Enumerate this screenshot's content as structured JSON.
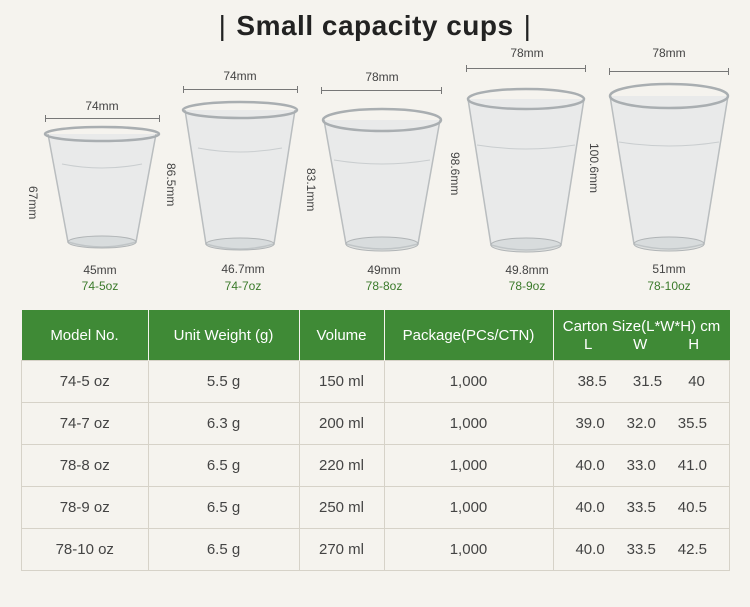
{
  "title": "Small capacity cups",
  "title_bar_left": "|",
  "title_bar_right": "|",
  "colors": {
    "header_green": "#3f8a36",
    "model_green": "#3a7a2a",
    "background": "#f5f3ee"
  },
  "cups": [
    {
      "top_dim": "74mm",
      "height_dim": "67mm",
      "bottom_dim": "45mm",
      "model": "74-5oz"
    },
    {
      "top_dim": "74mm",
      "height_dim": "86.5mm",
      "bottom_dim": "46.7mm",
      "model": "74-7oz"
    },
    {
      "top_dim": "78mm",
      "height_dim": "83.1mm",
      "bottom_dim": "49mm",
      "model": "78-8oz"
    },
    {
      "top_dim": "78mm",
      "height_dim": "98.6mm",
      "bottom_dim": "49.8mm",
      "model": "78-9oz"
    },
    {
      "top_dim": "78mm",
      "height_dim": "100.6mm",
      "bottom_dim": "51mm",
      "model": "78-10oz"
    }
  ],
  "table": {
    "headers": {
      "model": "Model No.",
      "weight": "Unit Weight (g)",
      "volume": "Volume",
      "package": "Package(PCs/CTN)",
      "carton": "Carton Size(L*W*H) cm",
      "l": "L",
      "w": "W",
      "h": "H"
    },
    "rows": [
      {
        "model": "74-5 oz",
        "weight": "5.5 g",
        "volume": "150 ml",
        "package": "1,000",
        "l": "38.5",
        "w": "31.5",
        "h": "40"
      },
      {
        "model": "74-7 oz",
        "weight": "6.3 g",
        "volume": "200 ml",
        "package": "1,000",
        "l": "39.0",
        "w": "32.0",
        "h": "35.5"
      },
      {
        "model": "78-8 oz",
        "weight": "6.5 g",
        "volume": "220 ml",
        "package": "1,000",
        "l": "40.0",
        "w": "33.0",
        "h": "41.0"
      },
      {
        "model": "78-9 oz",
        "weight": "6.5 g",
        "volume": "250 ml",
        "package": "1,000",
        "l": "40.0",
        "w": "33.5",
        "h": "40.5"
      },
      {
        "model": "78-10 oz",
        "weight": "6.5 g",
        "volume": "270 ml",
        "package": "1,000",
        "l": "40.0",
        "w": "33.5",
        "h": "42.5"
      }
    ]
  }
}
